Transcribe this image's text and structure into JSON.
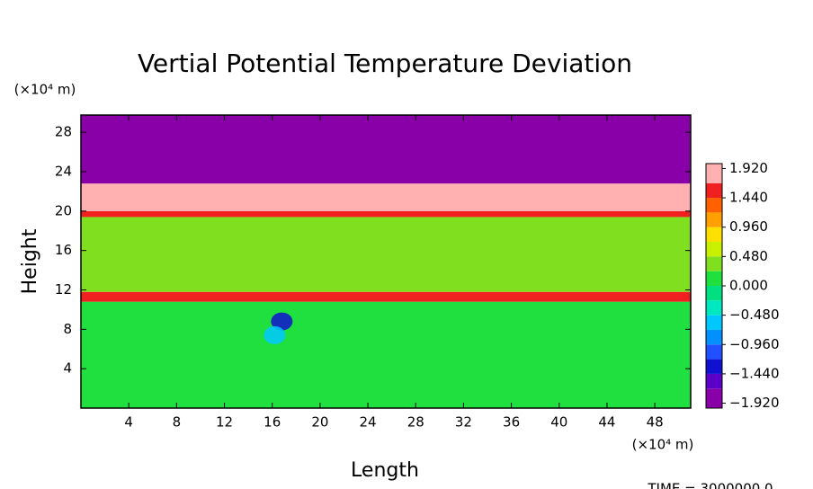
{
  "chart_data": {
    "type": "field",
    "title": "Vertial Potential Temperature Deviation",
    "x_label": "Length",
    "y_label": "Height",
    "x_unit": "(×10⁴ m)",
    "y_unit": "(×10⁴ m)",
    "footer": "TIME = 3000000.0",
    "xlim": [
      0,
      51
    ],
    "ylim": [
      0,
      29.75
    ],
    "xticks": [
      4,
      8,
      12,
      16,
      20,
      24,
      28,
      32,
      36,
      40,
      44,
      48
    ],
    "yticks": [
      4,
      8,
      12,
      16,
      20,
      24,
      28
    ],
    "layers": [
      {
        "y": [
          0,
          10.8
        ],
        "value": 0.05
      },
      {
        "y": [
          10.8,
          11.8
        ],
        "value": 1.5
      },
      {
        "y": [
          11.8,
          19.4
        ],
        "value": 0.3
      },
      {
        "y": [
          19.4,
          20
        ],
        "value": 1.5
      },
      {
        "y": [
          20,
          22.8
        ],
        "value": 1.8
      },
      {
        "y": [
          22.8,
          29.75
        ],
        "value": -1.9
      }
    ],
    "blobs": [
      {
        "x": 16.8,
        "y": 8.8,
        "value": -1.3
      },
      {
        "x": 16.2,
        "y": 7.4,
        "value": -0.6
      }
    ],
    "colorbar": {
      "clim": [
        -2.0,
        2.0
      ],
      "levels": [
        -1.92,
        -1.68,
        -1.44,
        -1.2,
        -0.96,
        -0.72,
        -0.48,
        -0.24,
        0,
        0.24,
        0.48,
        0.72,
        0.96,
        1.2,
        1.44,
        1.68,
        1.92
      ],
      "colors": [
        "#8a00a8",
        "#5a00c8",
        "#1010d0",
        "#2050ff",
        "#0090ff",
        "#00c8ff",
        "#00e8c0",
        "#00e080",
        "#20e040",
        "#80e020",
        "#c8f000",
        "#ffe000",
        "#ffa000",
        "#ff6000",
        "#f02020",
        "#ffb0b0"
      ],
      "ticks": [
        {
          "value": 1.92,
          "label": "1.920"
        },
        {
          "value": 1.44,
          "label": "1.440"
        },
        {
          "value": 0.96,
          "label": "0.960"
        },
        {
          "value": 0.48,
          "label": "0.480"
        },
        {
          "value": 0,
          "label": "0.000"
        },
        {
          "value": -0.48,
          "label": "−0.480"
        },
        {
          "value": -0.96,
          "label": "−0.960"
        },
        {
          "value": -1.44,
          "label": "−1.440"
        },
        {
          "value": -1.92,
          "label": "−1.920"
        }
      ]
    }
  }
}
